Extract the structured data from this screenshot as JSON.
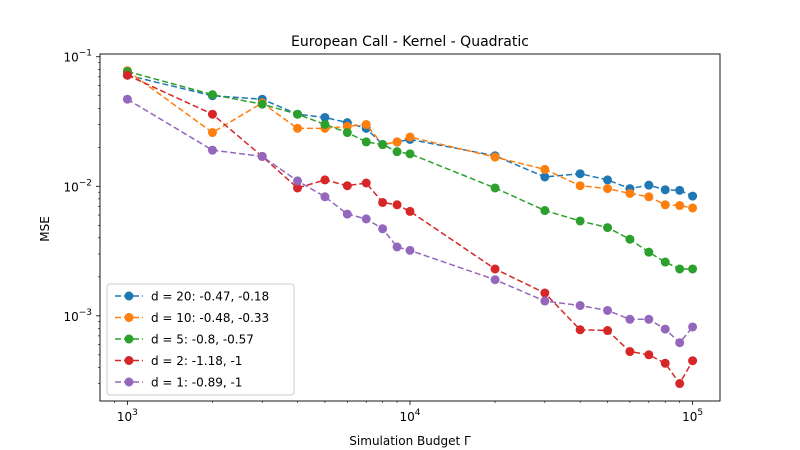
{
  "chart_data": {
    "type": "line",
    "title": "European Call - Kernel - Quadratic",
    "xlabel": "Simulation Budget Γ",
    "ylabel": "MSE",
    "xscale": "log",
    "yscale": "log",
    "xlim": [
      800,
      125000
    ],
    "ylim": [
      0.00022,
      0.105
    ],
    "grid": false,
    "legend_position": "lower-left",
    "x_ticks": [
      {
        "value": 1000,
        "base": "10",
        "exp": "3"
      },
      {
        "value": 10000,
        "base": "10",
        "exp": "4"
      },
      {
        "value": 100000,
        "base": "10",
        "exp": "5"
      }
    ],
    "y_ticks": [
      {
        "value": 0.001,
        "base": "10",
        "exp": "−3"
      },
      {
        "value": 0.01,
        "base": "10",
        "exp": "−2"
      },
      {
        "value": 0.1,
        "base": "10",
        "exp": "−1"
      }
    ],
    "x": [
      1000,
      2000,
      3000,
      4000,
      5000,
      6000,
      7000,
      8000,
      9000,
      10000,
      20000,
      30000,
      40000,
      50000,
      60000,
      70000,
      80000,
      90000,
      100000
    ],
    "series": [
      {
        "name": "d = 20: -0.47, -0.18",
        "color": "#1f77b4",
        "values": [
          0.072,
          0.05,
          0.047,
          0.036,
          0.034,
          0.031,
          0.028,
          0.021,
          0.022,
          0.023,
          0.0172,
          0.0118,
          0.0125,
          0.0112,
          0.0096,
          0.0102,
          0.0094,
          0.0093,
          0.0084
        ]
      },
      {
        "name": "d = 10: -0.48, -0.33",
        "color": "#ff7f0e",
        "values": [
          0.078,
          0.026,
          0.044,
          0.028,
          0.028,
          0.029,
          0.03,
          0.021,
          0.022,
          0.024,
          0.0168,
          0.0135,
          0.0101,
          0.0096,
          0.0088,
          0.0083,
          0.0072,
          0.0071,
          0.0068
        ]
      },
      {
        "name": "d = 5: -0.8, -0.57",
        "color": "#2ca02c",
        "values": [
          0.077,
          0.051,
          0.043,
          0.036,
          0.03,
          0.026,
          0.022,
          0.021,
          0.0185,
          0.0178,
          0.0097,
          0.0065,
          0.0054,
          0.0048,
          0.0039,
          0.0031,
          0.0026,
          0.0023,
          0.0023
        ]
      },
      {
        "name": "d = 2: -1.18, -1",
        "color": "#d62728",
        "values": [
          0.072,
          0.036,
          0.017,
          0.0097,
          0.0112,
          0.0101,
          0.0106,
          0.0075,
          0.0072,
          0.0064,
          0.0023,
          0.0015,
          0.00078,
          0.00077,
          0.00053,
          0.0005,
          0.00043,
          0.0003,
          0.00045
        ]
      },
      {
        "name": "d = 1: -0.89, -1",
        "color": "#9467bd",
        "values": [
          0.047,
          0.019,
          0.017,
          0.011,
          0.0083,
          0.0061,
          0.0056,
          0.0047,
          0.0034,
          0.0032,
          0.0019,
          0.0013,
          0.0012,
          0.0011,
          0.00094,
          0.00094,
          0.00079,
          0.00062,
          0.00082
        ]
      }
    ]
  }
}
